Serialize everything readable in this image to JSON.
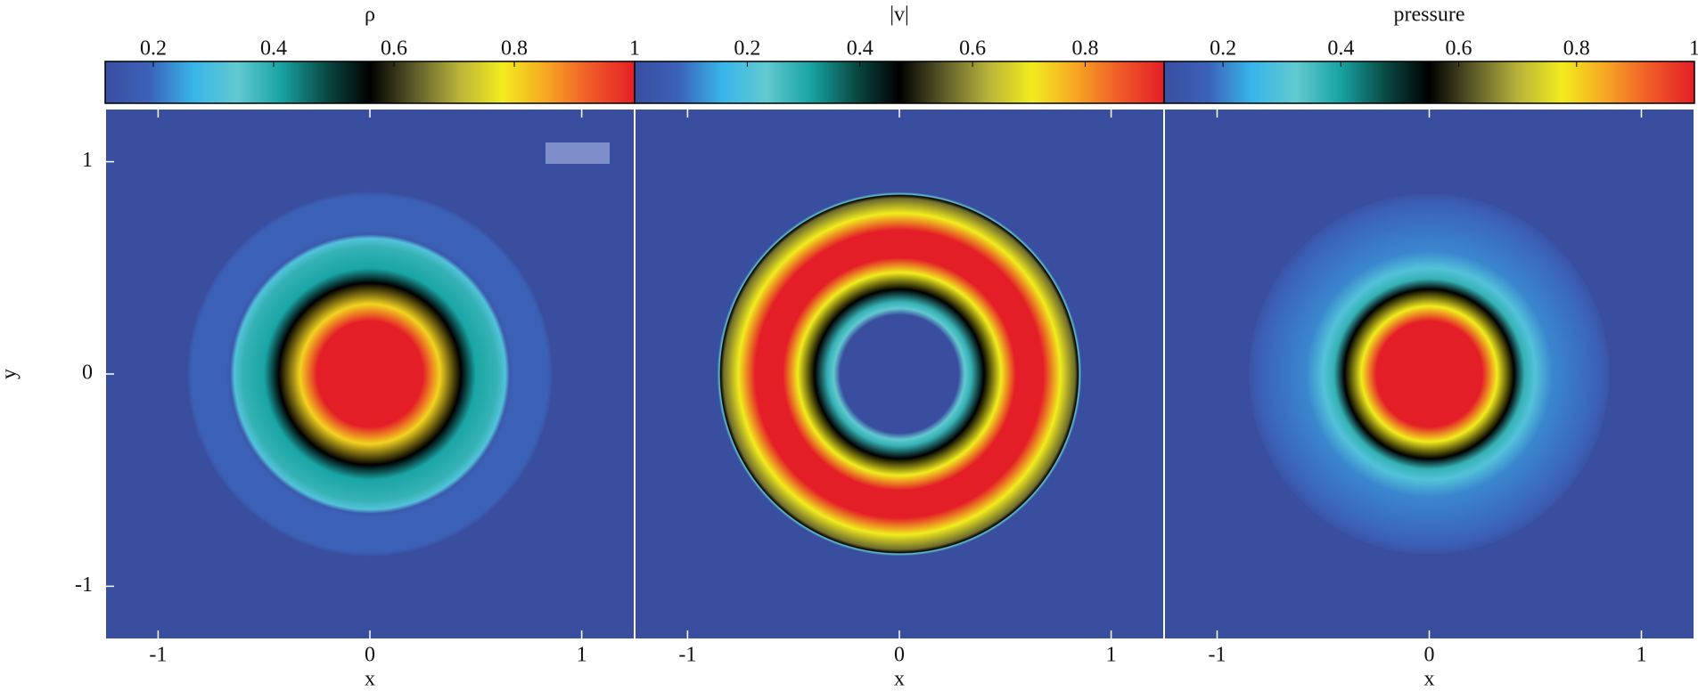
{
  "chart_data": [
    {
      "type": "heatmap",
      "title": "ρ",
      "xlabel": "x",
      "ylabel": "y",
      "clim": [
        0.12,
        1
      ],
      "cticks": [
        0.2,
        0.4,
        0.6,
        0.8,
        1
      ],
      "xlim": [
        -1.25,
        1.25
      ],
      "ylim": [
        -1.25,
        1.25
      ],
      "xticks": [
        -1,
        0,
        1
      ],
      "yticks": [
        -1,
        0,
        1
      ],
      "colormap": [
        "#3a4ea0",
        "#3b62b8",
        "#38b6ea",
        "#62c9cf",
        "#17a3a3",
        "#0a4a44",
        "#000000",
        "#5c5a2a",
        "#b8b23a",
        "#f2ec1e",
        "#f6a623",
        "#f05a28",
        "#e41e26"
      ]
    },
    {
      "type": "heatmap",
      "title": "|v|",
      "xlabel": "x",
      "clim": [
        0,
        0.94
      ],
      "cticks": [
        0.2,
        0.4,
        0.6,
        0.8
      ],
      "xlim": [
        -1.25,
        1.25
      ],
      "ylim": [
        -1.25,
        1.25
      ],
      "xticks": [
        -1,
        0,
        1
      ],
      "colormap": [
        "#3a4ea0",
        "#3b62b8",
        "#38b6ea",
        "#62c9cf",
        "#17a3a3",
        "#0a4a44",
        "#000000",
        "#5c5a2a",
        "#b8b23a",
        "#f2ec1e",
        "#f6a623",
        "#f05a28",
        "#e41e26"
      ]
    },
    {
      "type": "heatmap",
      "title": "pressure",
      "xlabel": "x",
      "clim": [
        0.1,
        1
      ],
      "cticks": [
        0.2,
        0.4,
        0.6,
        0.8,
        1
      ],
      "xlim": [
        -1.25,
        1.25
      ],
      "ylim": [
        -1.25,
        1.25
      ],
      "xticks": [
        -1,
        0,
        1
      ],
      "colormap": [
        "#3a4ea0",
        "#3b62b8",
        "#38b6ea",
        "#62c9cf",
        "#17a3a3",
        "#0a4a44",
        "#000000",
        "#5c5a2a",
        "#b8b23a",
        "#f2ec1e",
        "#f6a623",
        "#f05a28",
        "#e41e26"
      ]
    }
  ]
}
